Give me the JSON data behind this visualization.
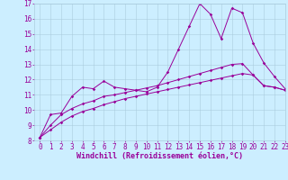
{
  "xlabel": "Windchill (Refroidissement éolien,°C)",
  "bg_color": "#cceeff",
  "grid_color": "#aaccdd",
  "line_color": "#990099",
  "xlim": [
    -0.5,
    23
  ],
  "ylim": [
    8,
    17
  ],
  "xticks": [
    0,
    1,
    2,
    3,
    4,
    5,
    6,
    7,
    8,
    9,
    10,
    11,
    12,
    13,
    14,
    15,
    16,
    17,
    18,
    19,
    20,
    21,
    22,
    23
  ],
  "yticks": [
    8,
    9,
    10,
    11,
    12,
    13,
    14,
    15,
    16,
    17
  ],
  "series1_x": [
    0,
    1,
    2,
    3,
    4,
    5,
    6,
    7,
    8,
    9,
    10,
    11,
    12,
    13,
    14,
    15,
    16,
    17,
    18,
    19,
    20,
    21,
    22,
    23
  ],
  "series1_y": [
    8.2,
    9.7,
    9.8,
    10.9,
    11.5,
    11.4,
    11.9,
    11.5,
    11.4,
    11.3,
    11.2,
    11.5,
    12.5,
    14.0,
    15.5,
    17.0,
    16.3,
    14.7,
    16.7,
    16.4,
    14.4,
    13.1,
    12.2,
    11.4
  ],
  "series2_x": [
    0,
    1,
    2,
    3,
    4,
    5,
    6,
    7,
    8,
    9,
    10,
    11,
    12,
    13,
    14,
    15,
    16,
    17,
    18,
    19,
    20,
    21,
    22,
    23
  ],
  "series2_y": [
    8.2,
    9.0,
    9.7,
    10.1,
    10.4,
    10.6,
    10.9,
    11.0,
    11.15,
    11.3,
    11.45,
    11.6,
    11.8,
    12.0,
    12.2,
    12.4,
    12.6,
    12.8,
    13.0,
    13.05,
    12.3,
    11.6,
    11.5,
    11.3
  ],
  "series3_x": [
    0,
    1,
    2,
    3,
    4,
    5,
    6,
    7,
    8,
    9,
    10,
    11,
    12,
    13,
    14,
    15,
    16,
    17,
    18,
    19,
    20,
    21,
    22,
    23
  ],
  "series3_y": [
    8.2,
    8.7,
    9.2,
    9.6,
    9.9,
    10.1,
    10.35,
    10.55,
    10.75,
    10.9,
    11.05,
    11.2,
    11.35,
    11.5,
    11.65,
    11.8,
    11.95,
    12.1,
    12.25,
    12.4,
    12.3,
    11.6,
    11.5,
    11.3
  ],
  "xlabel_fontsize": 6,
  "tick_fontsize": 5.5,
  "lw": 0.7,
  "ms": 1.8
}
